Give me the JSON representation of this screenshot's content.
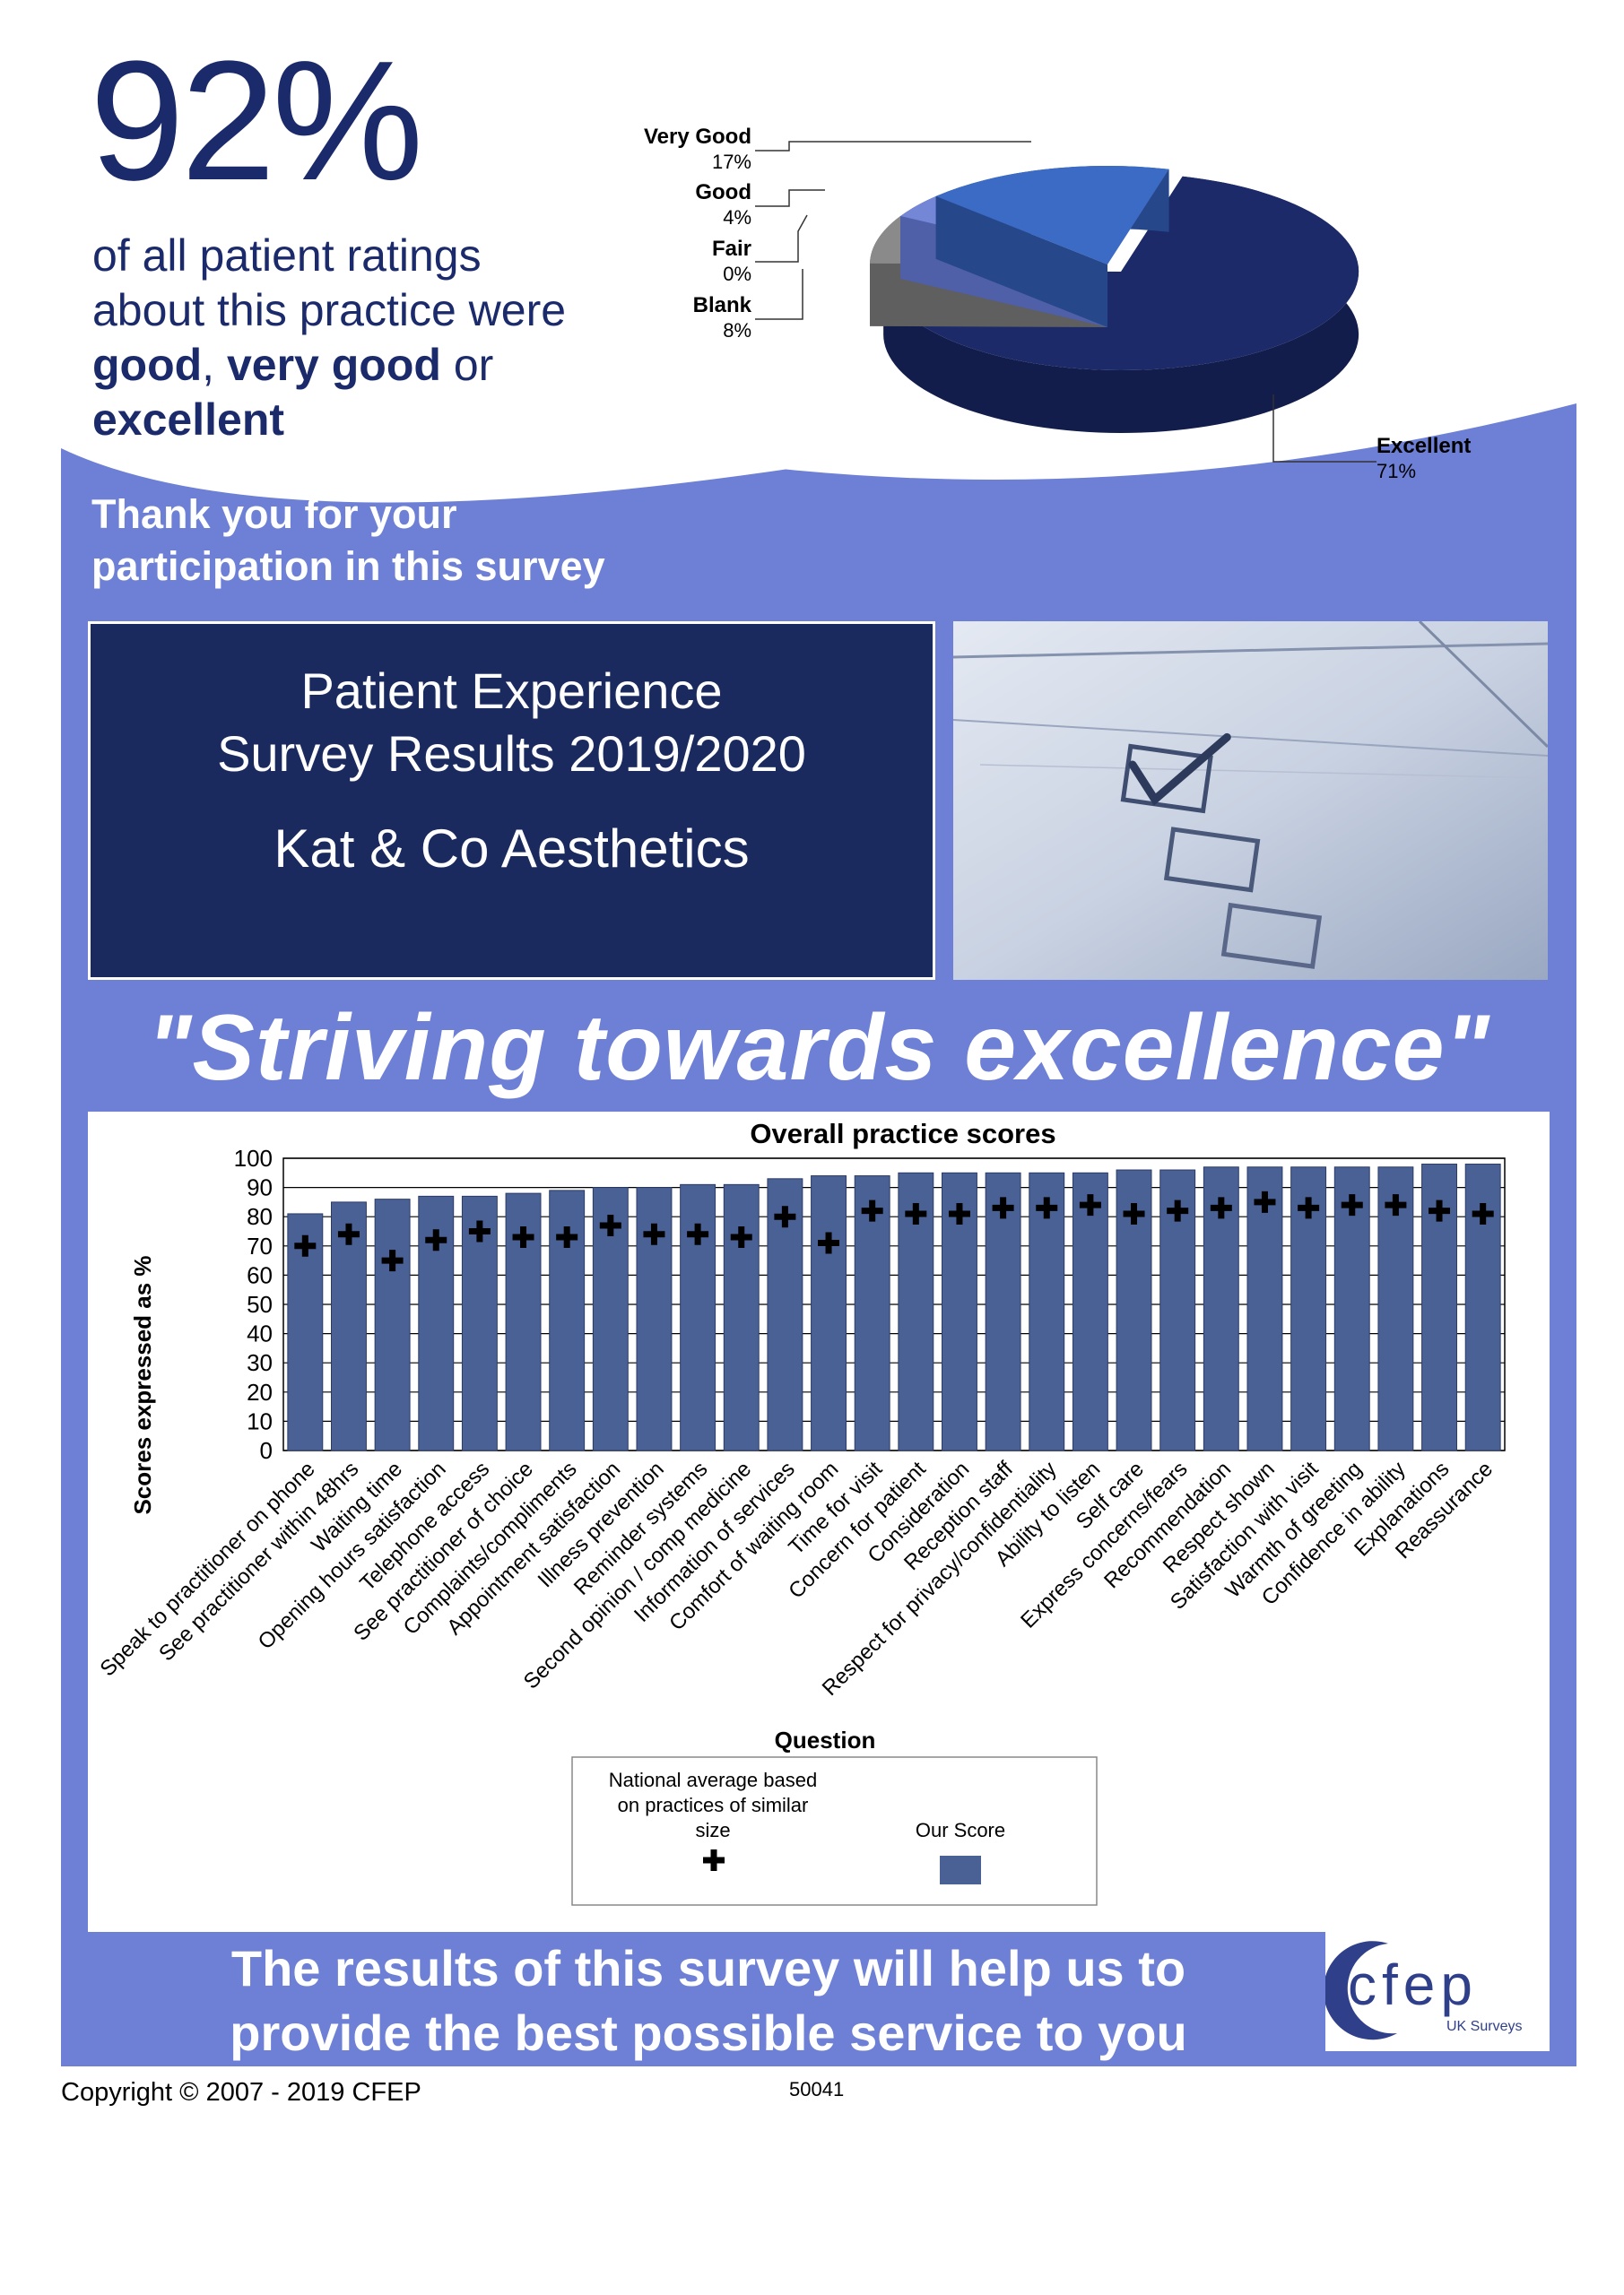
{
  "headline": {
    "percent": "92%",
    "line1": "of all patient ratings",
    "line2": "about this practice were",
    "good": "good",
    "comma": ", ",
    "very_good": "very good",
    "or": " or",
    "excellent": "excellent"
  },
  "thanks": {
    "line1": "Thank you for your",
    "line2": "participation in this survey"
  },
  "title_box": {
    "line1": "Patient Experience",
    "line2": "Survey Results 2019/2020",
    "practice": "Kat & Co Aesthetics"
  },
  "slogan": "\"Striving towards excellence\"",
  "footer": {
    "line1": "The results of this survey will help us to",
    "line2": "provide the best possible service to you"
  },
  "logo": {
    "text": "cfep",
    "sub": "UK Surveys"
  },
  "copyright": "Copyright © 2007 - 2019 CFEP",
  "code": "50041",
  "colors": {
    "navy": "#1b2a5e",
    "panel": "#6d80d6",
    "bar": "#4a6196",
    "pie_excellent": "#1c2a6a",
    "pie_very_good": "#3b6bc4",
    "pie_good": "#7486d6",
    "pie_fair": "#bdbdbd",
    "pie_blank": "#8a8a8a"
  },
  "chart_data": [
    {
      "type": "pie",
      "slices": [
        {
          "label": "Very Good",
          "pct_text": "17%",
          "value": 17
        },
        {
          "label": "Good",
          "pct_text": "4%",
          "value": 4
        },
        {
          "label": "Fair",
          "pct_text": "0%",
          "value": 0
        },
        {
          "label": "Blank",
          "pct_text": "8%",
          "value": 8
        },
        {
          "label": "Excellent",
          "pct_text": "71%",
          "value": 71
        }
      ]
    },
    {
      "type": "bar",
      "title": "Overall practice scores",
      "xlabel": "Question",
      "ylabel": "Scores expressed as %",
      "ylim": [
        0,
        100
      ],
      "yticks": [
        "0",
        "10",
        "20",
        "30",
        "40",
        "50",
        "60",
        "70",
        "80",
        "90",
        "100"
      ],
      "categories": [
        "Speak to practitioner on phone",
        "See practitioner within 48hrs",
        "Waiting time",
        "Opening hours satisfaction",
        "Telephone access",
        "See practitioner of choice",
        "Complaints/compliments",
        "Appointment satisfaction",
        "Illness prevention",
        "Reminder systems",
        "Second opinion / comp medicine",
        "Information of services",
        "Comfort of waiting room",
        "Time for visit",
        "Concern for patient",
        "Consideration",
        "Reception staff",
        "Respect for privacy/confidentiality",
        "Ability to listen",
        "Self care",
        "Express concerns/fears",
        "Recommendation",
        "Respect shown",
        "Satisfaction with visit",
        "Warmth of greeting",
        "Confidence in ability",
        "Explanations",
        "Reassurance"
      ],
      "series": [
        {
          "name": "Our Score",
          "values": [
            81,
            85,
            86,
            87,
            87,
            88,
            89,
            90,
            90,
            91,
            91,
            93,
            94,
            94,
            95,
            95,
            95,
            95,
            95,
            96,
            96,
            97,
            97,
            97,
            97,
            97,
            98,
            98
          ]
        },
        {
          "name": "National average based on practices of similar size",
          "values": [
            70,
            74,
            65,
            72,
            75,
            73,
            73,
            77,
            74,
            74,
            73,
            80,
            71,
            82,
            81,
            81,
            83,
            83,
            84,
            81,
            82,
            83,
            85,
            83,
            84,
            84,
            82,
            81
          ]
        }
      ],
      "legend": {
        "national_line1": "National average based",
        "national_line2": "on practices of similar",
        "national_line3": "size",
        "ours": "Our Score"
      }
    }
  ]
}
